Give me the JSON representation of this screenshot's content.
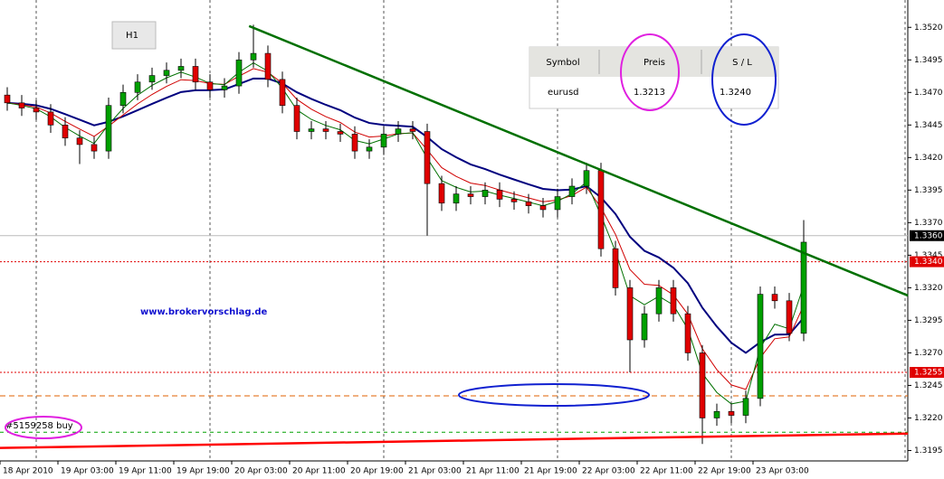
{
  "chart_data": {
    "type": "candlestick",
    "symbol_button": "H1",
    "watermark": "www.brokervorschlag.de",
    "order_label": "#5159258 buy",
    "table": {
      "headers": [
        "Symbol",
        "Preis",
        "S / L"
      ],
      "row": [
        "eurusd",
        "1.3213",
        "1.3240"
      ]
    },
    "categories": [
      "18 Apr 2010",
      "19 Apr 03:00",
      "19 Apr 11:00",
      "19 Apr 19:00",
      "20 Apr 03:00",
      "20 Apr 11:00",
      "20 Apr 19:00",
      "21 Apr 03:00",
      "21 Apr 11:00",
      "21 Apr 19:00",
      "22 Apr 03:00",
      "22 Apr 11:00",
      "22 Apr 19:00",
      "23 Apr 03:00"
    ],
    "up_color": "#00a000",
    "down_color": "#e00000",
    "open": [
      1.3468,
      1.3462,
      1.3458,
      1.3455,
      1.3445,
      1.3435,
      1.343,
      1.3425,
      1.346,
      1.347,
      1.3478,
      1.3483,
      1.3487,
      1.349,
      1.3478,
      1.3472,
      1.3475,
      1.3495,
      1.35,
      1.348,
      1.346,
      1.344,
      1.3442,
      1.344,
      1.3438,
      1.3425,
      1.3428,
      1.3438,
      1.3442,
      1.344,
      1.34,
      1.3385,
      1.3392,
      1.339,
      1.3395,
      1.3388,
      1.3386,
      1.3383,
      1.338,
      1.339,
      1.3398,
      1.341,
      1.335,
      1.332,
      1.328,
      1.33,
      1.332,
      1.33,
      1.327,
      1.322,
      1.3225,
      1.3222,
      1.3235,
      1.3315,
      1.331,
      1.3285
    ],
    "high": [
      1.3474,
      1.3468,
      1.3464,
      1.3461,
      1.3451,
      1.3441,
      1.3436,
      1.3466,
      1.3476,
      1.3484,
      1.3489,
      1.3493,
      1.3496,
      1.3496,
      1.3484,
      1.3481,
      1.3501,
      1.3522,
      1.3506,
      1.3486,
      1.3466,
      1.3448,
      1.3448,
      1.3446,
      1.3444,
      1.3434,
      1.3444,
      1.3448,
      1.3448,
      1.3446,
      1.3406,
      1.3398,
      1.3398,
      1.3401,
      1.3401,
      1.3394,
      1.3392,
      1.3389,
      1.3396,
      1.3404,
      1.3416,
      1.3416,
      1.3356,
      1.3326,
      1.3306,
      1.3326,
      1.3326,
      1.3306,
      1.3276,
      1.3231,
      1.3231,
      1.3241,
      1.3321,
      1.3321,
      1.3316,
      1.3372
    ],
    "low": [
      1.3456,
      1.3452,
      1.3449,
      1.3439,
      1.3429,
      1.3415,
      1.3419,
      1.3419,
      1.3454,
      1.3464,
      1.3472,
      1.3477,
      1.3481,
      1.3472,
      1.3466,
      1.3466,
      1.3469,
      1.3489,
      1.3474,
      1.3454,
      1.3434,
      1.3434,
      1.3434,
      1.3432,
      1.3419,
      1.3419,
      1.3422,
      1.3432,
      1.3434,
      1.336,
      1.3379,
      1.3379,
      1.3384,
      1.3384,
      1.3382,
      1.338,
      1.3377,
      1.3374,
      1.3374,
      1.3384,
      1.3392,
      1.3344,
      1.3314,
      1.3255,
      1.3274,
      1.3294,
      1.3294,
      1.3264,
      1.32,
      1.3214,
      1.3216,
      1.3216,
      1.3229,
      1.3304,
      1.3279,
      1.3279
    ],
    "close": [
      1.3462,
      1.3458,
      1.3455,
      1.3445,
      1.3435,
      1.343,
      1.3425,
      1.346,
      1.347,
      1.3478,
      1.3483,
      1.3487,
      1.349,
      1.3478,
      1.3472,
      1.3475,
      1.3495,
      1.35,
      1.348,
      1.346,
      1.344,
      1.3442,
      1.344,
      1.3438,
      1.3425,
      1.3428,
      1.3438,
      1.3442,
      1.344,
      1.34,
      1.3385,
      1.3392,
      1.339,
      1.3395,
      1.3388,
      1.3386,
      1.3383,
      1.338,
      1.339,
      1.3398,
      1.341,
      1.335,
      1.332,
      1.328,
      1.33,
      1.332,
      1.33,
      1.327,
      1.322,
      1.3225,
      1.3222,
      1.3235,
      1.3315,
      1.331,
      1.3285,
      1.3355
    ],
    "indicators": [
      {
        "period": 10,
        "color": "#00007f",
        "width": 2
      },
      {
        "period": 5,
        "color": "#d00000",
        "width": 1
      },
      {
        "period": 3,
        "color": "#007000",
        "width": 1
      }
    ],
    "trendlines": [
      {
        "from": [
          16.7,
          1.3521
        ],
        "to": [
          62.2,
          1.3314
        ],
        "color": "#007000"
      },
      {
        "from": [
          -0.5,
          1.3197
        ],
        "to": [
          62.2,
          1.3208
        ],
        "color": "#ff0000"
      }
    ],
    "hlines": [
      {
        "value": 1.336,
        "color": "#bbbbbb",
        "dash": "none"
      },
      {
        "value": 1.334,
        "color": "#e00000",
        "dash": "2 2"
      },
      {
        "value": 1.3255,
        "color": "#e00000",
        "dash": "2 2"
      },
      {
        "value": 1.3237,
        "color": "#e06000",
        "dash": "6 4"
      },
      {
        "value": 1.3209,
        "color": "#00a000",
        "dash": "4 4"
      }
    ],
    "price_markers": [
      {
        "value": 1.336,
        "label": "1.3360",
        "color": "#000000"
      },
      {
        "value": 1.334,
        "label": "1.3340",
        "color": "#e00000"
      },
      {
        "value": 1.3255,
        "label": "1.3255",
        "color": "#e00000"
      }
    ],
    "ylim": [
      1.3187,
      1.3541
    ],
    "yticks": [
      {
        "value": 1.352,
        "label": "1.3520"
      },
      1.3495,
      {
        "value": 1.347,
        "label": "1.3470"
      },
      1.3445,
      {
        "value": 1.342,
        "label": "1.3420"
      },
      1.3395,
      {
        "value": 1.337,
        "label": "1.3370"
      },
      1.3345,
      {
        "value": 1.332,
        "label": "1.3320"
      },
      1.3295,
      {
        "value": 1.327,
        "label": "1.3270"
      },
      1.3245,
      {
        "value": 1.322,
        "label": "1.3220"
      },
      1.3195
    ]
  }
}
